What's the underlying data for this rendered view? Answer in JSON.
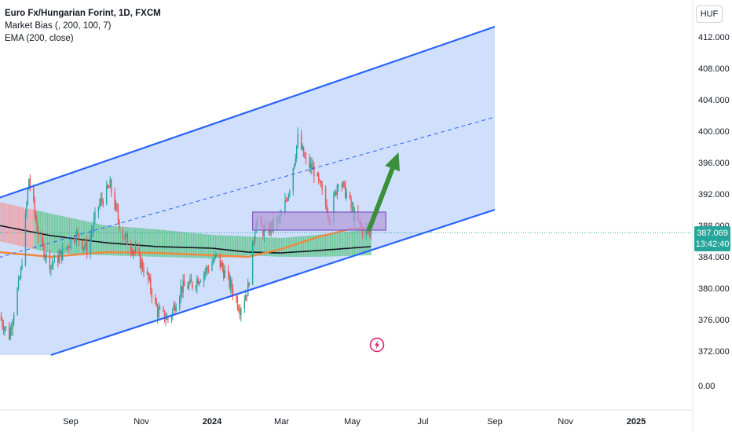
{
  "legend": {
    "title": "Euro Fx/Hungarian Forint, 1D, FXCM",
    "indicator1": "Market Bias (, 200, 100, 7)",
    "indicator2": "EMA (200, close)"
  },
  "currency": "HUF",
  "price_tag": {
    "price": "387.069",
    "time": "13:42:40"
  },
  "colors": {
    "up": "#26a69a",
    "down": "#ef5350",
    "channel": "#2962ff",
    "channel_fill": "#c8d9fb",
    "ema": "#f0883e",
    "bias": "#5ec48a",
    "arrow": "#3a8f3a",
    "box": "#b39ddb"
  },
  "chart_data": {
    "type": "line",
    "symbol": "EURHUF",
    "y_ticks": [
      "412.000",
      "408.000",
      "404.000",
      "400.000",
      "396.000",
      "392.000",
      "388.000",
      "384.000",
      "380.000",
      "376.000",
      "372.000",
      "0.00"
    ],
    "y_tick_values": [
      412,
      408,
      404,
      400,
      396,
      392,
      388,
      384,
      380,
      376,
      372
    ],
    "x_ticks": [
      {
        "label": "Sep",
        "date": "2023-09-01"
      },
      {
        "label": "Nov",
        "date": "2023-11-01"
      },
      {
        "label": "2024",
        "date": "2024-01-01",
        "bold": true
      },
      {
        "label": "Mar",
        "date": "2024-03-01"
      },
      {
        "label": "May",
        "date": "2024-05-01"
      },
      {
        "label": "Jul",
        "date": "2024-07-01"
      },
      {
        "label": "Sep",
        "date": "2024-09-01"
      },
      {
        "label": "Nov",
        "date": "2024-11-01"
      },
      {
        "label": "2025",
        "date": "2025-01-01",
        "bold": true
      }
    ],
    "price_path": [
      {
        "date": "2023-07-01",
        "close": 376.5
      },
      {
        "date": "2023-07-10",
        "close": 374.0
      },
      {
        "date": "2023-07-20",
        "close": 382.0
      },
      {
        "date": "2023-07-27",
        "close": 394.0
      },
      {
        "date": "2023-08-05",
        "close": 386.0
      },
      {
        "date": "2023-08-15",
        "close": 383.0
      },
      {
        "date": "2023-08-25",
        "close": 384.5
      },
      {
        "date": "2023-09-05",
        "close": 387.0
      },
      {
        "date": "2023-09-15",
        "close": 385.0
      },
      {
        "date": "2023-09-25",
        "close": 390.5
      },
      {
        "date": "2023-10-05",
        "close": 393.0
      },
      {
        "date": "2023-10-15",
        "close": 387.0
      },
      {
        "date": "2023-10-25",
        "close": 385.0
      },
      {
        "date": "2023-11-05",
        "close": 382.0
      },
      {
        "date": "2023-11-15",
        "close": 377.0
      },
      {
        "date": "2023-11-25",
        "close": 376.0
      },
      {
        "date": "2023-12-05",
        "close": 380.0
      },
      {
        "date": "2023-12-15",
        "close": 380.5
      },
      {
        "date": "2023-12-28",
        "close": 382.5
      },
      {
        "date": "2024-01-05",
        "close": 384.0
      },
      {
        "date": "2024-01-15",
        "close": 381.0
      },
      {
        "date": "2024-01-25",
        "close": 377.5
      },
      {
        "date": "2024-02-01",
        "close": 380.0
      },
      {
        "date": "2024-02-08",
        "close": 389.0
      },
      {
        "date": "2024-02-15",
        "close": 387.0
      },
      {
        "date": "2024-02-22",
        "close": 388.0
      },
      {
        "date": "2024-03-01",
        "close": 389.0
      },
      {
        "date": "2024-03-08",
        "close": 393.0
      },
      {
        "date": "2024-03-15",
        "close": 399.0
      },
      {
        "date": "2024-03-22",
        "close": 396.0
      },
      {
        "date": "2024-03-29",
        "close": 395.0
      },
      {
        "date": "2024-04-05",
        "close": 392.0
      },
      {
        "date": "2024-04-12",
        "close": 389.0
      },
      {
        "date": "2024-04-19",
        "close": 394.0
      },
      {
        "date": "2024-04-26",
        "close": 392.0
      },
      {
        "date": "2024-05-03",
        "close": 389.0
      },
      {
        "date": "2024-05-10",
        "close": 387.5
      },
      {
        "date": "2024-05-17",
        "close": 387.069
      }
    ],
    "ema_200": [
      {
        "date": "2023-07-01",
        "value": 384.6
      },
      {
        "date": "2023-08-15",
        "value": 384.0
      },
      {
        "date": "2023-10-01",
        "value": 384.6
      },
      {
        "date": "2023-11-15",
        "value": 384.5
      },
      {
        "date": "2024-01-01",
        "value": 384.2
      },
      {
        "date": "2024-02-01",
        "value": 384.0
      },
      {
        "date": "2024-03-01",
        "value": 385.0
      },
      {
        "date": "2024-04-01",
        "value": 386.5
      },
      {
        "date": "2024-05-01",
        "value": 387.6
      },
      {
        "date": "2024-05-17",
        "value": 387.6
      }
    ],
    "market_bias": [
      {
        "date": "2023-07-01",
        "top": 391.0,
        "bottom": 386.0,
        "mid": 388.0
      },
      {
        "date": "2023-08-15",
        "top": 389.5,
        "bottom": 384.5,
        "mid": 386.7
      },
      {
        "date": "2023-10-01",
        "top": 388.0,
        "bottom": 384.2,
        "mid": 385.8
      },
      {
        "date": "2023-11-15",
        "top": 387.5,
        "bottom": 384.0,
        "mid": 385.3
      },
      {
        "date": "2024-01-01",
        "top": 386.8,
        "bottom": 383.8,
        "mid": 385.1
      },
      {
        "date": "2024-02-01",
        "top": 386.6,
        "bottom": 384.2,
        "mid": 384.6
      },
      {
        "date": "2024-03-01",
        "top": 386.4,
        "bottom": 384.0,
        "mid": 384.5
      },
      {
        "date": "2024-04-01",
        "top": 386.8,
        "bottom": 384.0,
        "mid": 384.8
      },
      {
        "date": "2024-05-17",
        "top": 387.5,
        "bottom": 384.2,
        "mid": 385.3
      }
    ],
    "channel": {
      "upper": [
        {
          "date": "2023-07-01",
          "value": 391.5
        },
        {
          "date": "2024-09-01",
          "value": 413.3
        }
      ],
      "middle": [
        {
          "date": "2023-09-20",
          "value": 387.3
        },
        {
          "date": "2024-09-01",
          "value": 401.8
        }
      ],
      "lower": [
        {
          "date": "2023-08-15",
          "value": 371.5
        },
        {
          "date": "2024-09-01",
          "value": 390.0
        }
      ]
    },
    "zone": {
      "start": "2024-02-05",
      "end": "2024-05-30",
      "top": 389.7,
      "bottom": 387.4
    },
    "projection_arrow": {
      "from_date": "2024-05-15",
      "from_value": 387.3,
      "to_date": "2024-06-10",
      "to_value": 397.3
    },
    "current_price": 387.069
  }
}
